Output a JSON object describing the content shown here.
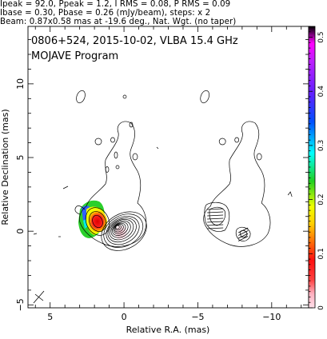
{
  "header": {
    "line1": "Ipeak = 92.0, Ppeak = 1.2, I RMS = 0.08, P RMS = 0.09",
    "line2": "Ibase = 0.30, Pbase = 0.26 (mJy/beam), steps: x 2",
    "line3": "Beam: 0.87x0.58 mas at -19.6 deg., Nat. Wgt. (no taper)"
  },
  "chart_data": {
    "type": "heatmap",
    "title": "0806+524, 2015-10-02, VLBA 15.4 GHz",
    "subtitle": "MOJAVE Program",
    "xlabel": "Relative R.A. (mas)",
    "ylabel": "Relative Declination (mas)",
    "xlim": [
      6.5,
      -12.5
    ],
    "ylim": [
      -5.2,
      13.9
    ],
    "x_ticks": [
      5,
      0,
      -5,
      -10
    ],
    "y_ticks": [
      -5,
      0,
      5,
      10
    ],
    "colorbar": {
      "ticks": [
        0,
        0.1,
        0.2,
        0.3,
        0.4,
        0.5
      ],
      "range": [
        0,
        0.52
      ]
    },
    "beam": {
      "major_mas": 0.87,
      "minor_mas": 0.58,
      "pa_deg": -19.6
    },
    "panels": [
      {
        "name": "total-intensity-contours",
        "x_offset_mas": 0
      },
      {
        "name": "polarization-contours",
        "x_offset_mas": -8.4
      }
    ],
    "core_position_mas": [
      0,
      0
    ],
    "polarized_knot_mas": [
      -1.7,
      0.8
    ]
  }
}
